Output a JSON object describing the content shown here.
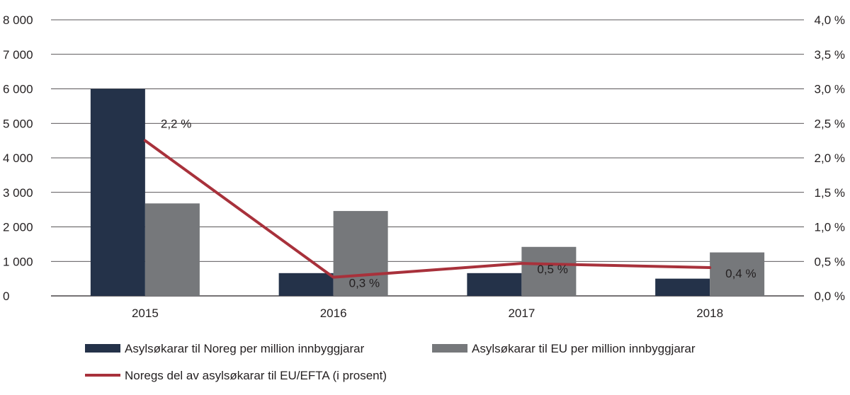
{
  "chart_data": {
    "type": "bar",
    "categories": [
      "2015",
      "2016",
      "2017",
      "2018"
    ],
    "series": [
      {
        "name": "Asylsøkarar til Noreg per million innbyggjarar",
        "type": "bar",
        "axis": "left",
        "color": "#243249",
        "values": [
          6000,
          660,
          660,
          500
        ]
      },
      {
        "name": "Asylsøkarar til EU per million innbyggjarar",
        "type": "bar",
        "axis": "left",
        "color": "#76787b",
        "values": [
          2680,
          2460,
          1420,
          1260
        ]
      },
      {
        "name": "Noregs del av asylsøkarar til EU/EFTA (i prosent)",
        "type": "line",
        "axis": "right",
        "color": "#a8313b",
        "values": [
          2.25,
          0.27,
          0.47,
          0.41
        ],
        "data_labels": [
          "2,2 %",
          "0,3 %",
          "0,5 %",
          "0,4 %"
        ]
      }
    ],
    "y_left": {
      "ylim": [
        0,
        8000
      ],
      "ticks": [
        0,
        1000,
        2000,
        3000,
        4000,
        5000,
        6000,
        7000,
        8000
      ],
      "tick_labels": [
        "0",
        "1 000",
        "2 000",
        "3 000",
        "4 000",
        "5 000",
        "6 000",
        "7 000",
        "8 000"
      ]
    },
    "y_right": {
      "ylim": [
        0,
        4.0
      ],
      "ticks": [
        0,
        0.5,
        1.0,
        1.5,
        2.0,
        2.5,
        3.0,
        3.5,
        4.0
      ],
      "tick_labels": [
        "0,0 %",
        "0,5 %",
        "1,0 %",
        "1,5 %",
        "2,0 %",
        "2,5 %",
        "3,0 %",
        "3,5 %",
        "4,0 %"
      ]
    },
    "grid": "horizontal",
    "legend_position": "bottom",
    "title": "",
    "xlabel": "",
    "ylabel": ""
  }
}
